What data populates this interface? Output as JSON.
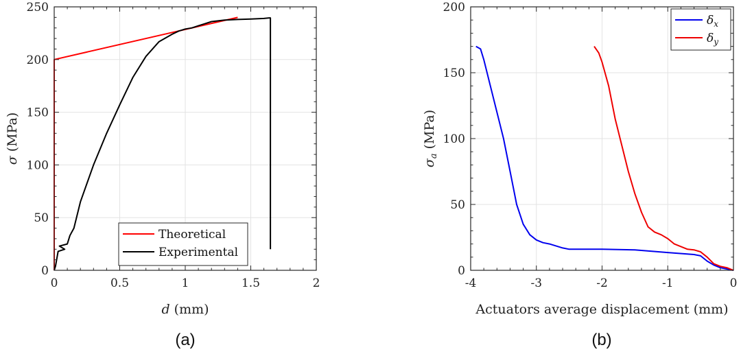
{
  "chart_data": [
    {
      "id": "a",
      "type": "line",
      "panel_label": "(a)",
      "xlabel": "d (mm)",
      "ylabel": "σ (MPa)",
      "xlim": [
        0,
        2
      ],
      "ylim": [
        0,
        250
      ],
      "xticks": [
        0,
        0.5,
        1,
        1.5,
        2
      ],
      "xtick_labels": [
        "0",
        "0.5",
        "1",
        "1.5",
        "2"
      ],
      "yticks": [
        0,
        50,
        100,
        150,
        200,
        250
      ],
      "ytick_labels": [
        "0",
        "50",
        "100",
        "150",
        "200",
        "250"
      ],
      "grid": true,
      "legend_position": "bottom-right",
      "series": [
        {
          "name": "Theoretical",
          "color": "#ff0000",
          "x": [
            0,
            0,
            1.4
          ],
          "y": [
            0,
            200,
            240
          ]
        },
        {
          "name": "Experimental",
          "color": "#000000",
          "x": [
            0,
            0.01,
            0.03,
            0.08,
            0.04,
            0.1,
            0.12,
            0.15,
            0.2,
            0.3,
            0.4,
            0.5,
            0.6,
            0.7,
            0.8,
            0.9,
            0.95,
            1.0,
            1.05,
            1.1,
            1.15,
            1.2,
            1.3,
            1.4,
            1.5,
            1.6,
            1.64,
            1.65,
            1.65
          ],
          "y": [
            0,
            4,
            18,
            20,
            23,
            25,
            33,
            40,
            65,
            100,
            130,
            157,
            183,
            203,
            217,
            224,
            227,
            229,
            230,
            232,
            234,
            236,
            237.5,
            238,
            238.5,
            239,
            239.5,
            239.5,
            20
          ]
        }
      ]
    },
    {
      "id": "b",
      "type": "line",
      "panel_label": "(b)",
      "xlabel": "Actuators average displacement (mm)",
      "ylabel": "σa (MPa)",
      "xlim": [
        -4,
        0
      ],
      "ylim": [
        0,
        200
      ],
      "xticks": [
        -4,
        -3,
        -2,
        -1,
        0
      ],
      "xtick_labels": [
        "-4",
        "-3",
        "-2",
        "-1",
        "0"
      ],
      "yticks": [
        0,
        50,
        100,
        150,
        200
      ],
      "ytick_labels": [
        "0",
        "50",
        "100",
        "150",
        "200"
      ],
      "grid": true,
      "legend_position": "top-right",
      "series": [
        {
          "name": "δx",
          "color": "#0000ee",
          "x": [
            -3.92,
            -3.85,
            -3.8,
            -3.7,
            -3.6,
            -3.5,
            -3.4,
            -3.3,
            -3.2,
            -3.1,
            -3.0,
            -2.9,
            -2.8,
            -2.6,
            -2.5,
            -2.0,
            -1.5,
            -1.0,
            -0.6,
            -0.5,
            -0.4,
            -0.3,
            -0.2,
            0
          ],
          "y": [
            170,
            168,
            160,
            140,
            120,
            100,
            75,
            50,
            35,
            27,
            23,
            21,
            20,
            17,
            16,
            16,
            15.5,
            13.5,
            12,
            11,
            7,
            4,
            2,
            0
          ]
        },
        {
          "name": "δy",
          "color": "#ee0000",
          "x": [
            -2.12,
            -2.05,
            -2.0,
            -1.9,
            -1.8,
            -1.7,
            -1.6,
            -1.5,
            -1.4,
            -1.3,
            -1.2,
            -1.1,
            -1.0,
            -0.9,
            -0.8,
            -0.7,
            -0.6,
            -0.5,
            -0.4,
            -0.3,
            -0.2,
            -0.1,
            0
          ],
          "y": [
            170,
            165,
            158,
            140,
            115,
            95,
            75,
            58,
            44,
            33,
            29,
            27,
            24,
            20,
            18,
            16,
            15.5,
            14,
            10,
            5,
            3,
            2,
            0
          ]
        }
      ]
    }
  ]
}
